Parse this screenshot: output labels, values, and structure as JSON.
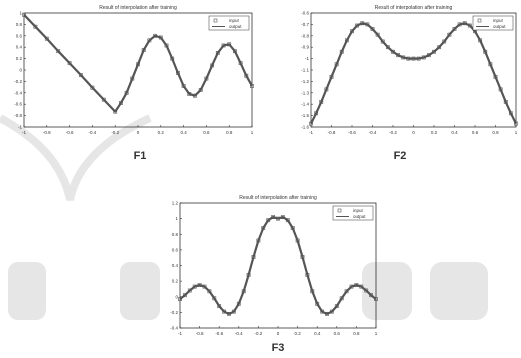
{
  "colors": {
    "series": "#555555",
    "watermark": "#e6e6e6",
    "axis": "#333333"
  },
  "chart_data": [
    {
      "type": "line",
      "caption": "F1",
      "title": "Result of interpolation after training",
      "xlim": [
        -1,
        1
      ],
      "ylim": [
        -1,
        1
      ],
      "xticks": [
        -1,
        -0.8,
        -0.6,
        -0.4,
        -0.2,
        0,
        0.2,
        0.4,
        0.6,
        0.8,
        1
      ],
      "yticks": [
        -1,
        -0.8,
        -0.6,
        -0.4,
        -0.2,
        0,
        0.2,
        0.4,
        0.6,
        0.8,
        1
      ],
      "xtick_labels": [
        "-1",
        "-0.8",
        "-0.6",
        "-0.4",
        "-0.2",
        "0",
        "0.2",
        "0.4",
        "0.6",
        "0.8",
        "1"
      ],
      "ytick_labels": [
        "-1",
        "-0.8",
        "-0.6",
        "-0.4",
        "-0.2",
        "0",
        "0.2",
        "0.4",
        "0.6",
        "0.8",
        "1"
      ],
      "legend": {
        "position": "top-right",
        "entries": [
          "input",
          "output"
        ]
      },
      "x": [
        -1,
        -0.9,
        -0.8,
        -0.7,
        -0.6,
        -0.5,
        -0.4,
        -0.3,
        -0.2,
        -0.15,
        -0.1,
        -0.05,
        0,
        0.05,
        0.1,
        0.15,
        0.2,
        0.25,
        0.3,
        0.35,
        0.4,
        0.45,
        0.5,
        0.55,
        0.6,
        0.65,
        0.7,
        0.75,
        0.8,
        0.85,
        0.9,
        0.95,
        1
      ],
      "series": [
        {
          "name": "input",
          "marker": "square",
          "values": [
            0.97,
            0.76,
            0.55,
            0.33,
            0.12,
            -0.09,
            -0.31,
            -0.52,
            -0.73,
            -0.58,
            -0.4,
            -0.15,
            0.1,
            0.35,
            0.52,
            0.6,
            0.57,
            0.43,
            0.2,
            -0.05,
            -0.28,
            -0.42,
            -0.45,
            -0.35,
            -0.15,
            0.08,
            0.3,
            0.43,
            0.45,
            0.33,
            0.12,
            -0.1,
            -0.28
          ]
        },
        {
          "name": "output",
          "marker": "line",
          "values": [
            0.97,
            0.76,
            0.55,
            0.33,
            0.12,
            -0.09,
            -0.31,
            -0.52,
            -0.73,
            -0.58,
            -0.4,
            -0.15,
            0.1,
            0.35,
            0.52,
            0.6,
            0.57,
            0.43,
            0.2,
            -0.05,
            -0.28,
            -0.42,
            -0.45,
            -0.35,
            -0.15,
            0.08,
            0.3,
            0.43,
            0.45,
            0.33,
            0.12,
            -0.1,
            -0.28
          ]
        }
      ]
    },
    {
      "type": "line",
      "caption": "F2",
      "title": "Result of interpolation after training",
      "xlim": [
        -1,
        1
      ],
      "ylim": [
        -1.6,
        -0.6
      ],
      "xticks": [
        -1,
        -0.8,
        -0.6,
        -0.4,
        -0.2,
        0,
        0.2,
        0.4,
        0.6,
        0.8,
        1
      ],
      "yticks": [
        -1.6,
        -1.5,
        -1.4,
        -1.3,
        -1.2,
        -1.1,
        -1,
        -0.9,
        -0.8,
        -0.7,
        -0.6
      ],
      "xtick_labels": [
        "-1",
        "-0.8",
        "-0.6",
        "-0.4",
        "-0.2",
        "0",
        "0.2",
        "0.4",
        "0.6",
        "0.8",
        "1"
      ],
      "ytick_labels": [
        "-1.6",
        "-1.5",
        "-1.4",
        "-1.3",
        "-1.2",
        "-1.1",
        "-1",
        "-0.9",
        "-0.8",
        "-0.7",
        "-0.6"
      ],
      "legend": {
        "position": "top-right",
        "entries": [
          "input",
          "output"
        ]
      },
      "x": [
        -1,
        -0.95,
        -0.9,
        -0.85,
        -0.8,
        -0.75,
        -0.7,
        -0.65,
        -0.6,
        -0.55,
        -0.5,
        -0.45,
        -0.4,
        -0.35,
        -0.3,
        -0.25,
        -0.2,
        -0.15,
        -0.1,
        -0.05,
        0,
        0.05,
        0.1,
        0.15,
        0.2,
        0.25,
        0.3,
        0.35,
        0.4,
        0.45,
        0.5,
        0.55,
        0.6,
        0.65,
        0.7,
        0.75,
        0.8,
        0.85,
        0.9,
        0.95,
        1
      ],
      "series": [
        {
          "name": "input",
          "marker": "square",
          "values": [
            -1.57,
            -1.48,
            -1.38,
            -1.27,
            -1.16,
            -1.05,
            -0.94,
            -0.84,
            -0.76,
            -0.71,
            -0.69,
            -0.7,
            -0.74,
            -0.79,
            -0.85,
            -0.9,
            -0.94,
            -0.97,
            -0.99,
            -1,
            -1,
            -1,
            -0.99,
            -0.97,
            -0.94,
            -0.9,
            -0.85,
            -0.79,
            -0.74,
            -0.7,
            -0.69,
            -0.71,
            -0.76,
            -0.84,
            -0.94,
            -1.05,
            -1.16,
            -1.27,
            -1.38,
            -1.48,
            -1.57
          ]
        },
        {
          "name": "output",
          "marker": "line",
          "values": [
            -1.57,
            -1.48,
            -1.38,
            -1.27,
            -1.16,
            -1.05,
            -0.94,
            -0.84,
            -0.76,
            -0.71,
            -0.69,
            -0.7,
            -0.74,
            -0.79,
            -0.85,
            -0.9,
            -0.94,
            -0.97,
            -0.99,
            -1,
            -1,
            -1,
            -0.99,
            -0.97,
            -0.94,
            -0.9,
            -0.85,
            -0.79,
            -0.74,
            -0.7,
            -0.69,
            -0.71,
            -0.76,
            -0.84,
            -0.94,
            -1.05,
            -1.16,
            -1.27,
            -1.38,
            -1.48,
            -1.57
          ]
        }
      ]
    },
    {
      "type": "line",
      "caption": "F3",
      "title": "Result of interpolation after training",
      "xlim": [
        -1,
        1
      ],
      "ylim": [
        -0.4,
        1.2
      ],
      "xticks": [
        -1,
        -0.8,
        -0.6,
        -0.4,
        -0.2,
        0,
        0.2,
        0.4,
        0.6,
        0.8,
        1
      ],
      "yticks": [
        -0.4,
        -0.2,
        0,
        0.2,
        0.4,
        0.6,
        0.8,
        1,
        1.2
      ],
      "xtick_labels": [
        "-1",
        "-0.8",
        "-0.6",
        "-0.4",
        "-0.2",
        "0",
        "0.2",
        "0.4",
        "0.6",
        "0.8",
        "1"
      ],
      "ytick_labels": [
        "-0.4",
        "-0.2",
        "0",
        "0.2",
        "0.4",
        "0.6",
        "0.8",
        "1",
        "1.2"
      ],
      "legend": {
        "position": "top-right",
        "entries": [
          "input",
          "output"
        ]
      },
      "x": [
        -1,
        -0.95,
        -0.9,
        -0.85,
        -0.8,
        -0.75,
        -0.7,
        -0.65,
        -0.6,
        -0.55,
        -0.5,
        -0.45,
        -0.4,
        -0.35,
        -0.3,
        -0.25,
        -0.2,
        -0.15,
        -0.1,
        -0.05,
        0,
        0.05,
        0.1,
        0.15,
        0.2,
        0.25,
        0.3,
        0.35,
        0.4,
        0.45,
        0.5,
        0.55,
        0.6,
        0.65,
        0.7,
        0.75,
        0.8,
        0.85,
        0.9,
        0.95,
        1
      ],
      "series": [
        {
          "name": "input",
          "marker": "square",
          "values": [
            -0.03,
            0.02,
            0.08,
            0.13,
            0.15,
            0.13,
            0.07,
            -0.02,
            -0.12,
            -0.19,
            -0.22,
            -0.19,
            -0.09,
            0.07,
            0.28,
            0.51,
            0.72,
            0.88,
            0.98,
            1.02,
            1.0,
            1.02,
            0.98,
            0.88,
            0.72,
            0.51,
            0.28,
            0.07,
            -0.09,
            -0.19,
            -0.22,
            -0.19,
            -0.12,
            -0.02,
            0.07,
            0.13,
            0.15,
            0.13,
            0.08,
            0.02,
            -0.03
          ]
        },
        {
          "name": "output",
          "marker": "line",
          "values": [
            -0.03,
            0.02,
            0.08,
            0.13,
            0.15,
            0.13,
            0.07,
            -0.02,
            -0.12,
            -0.19,
            -0.22,
            -0.19,
            -0.09,
            0.07,
            0.28,
            0.51,
            0.72,
            0.88,
            0.98,
            1.02,
            1.0,
            1.02,
            0.98,
            0.88,
            0.72,
            0.51,
            0.28,
            0.07,
            -0.09,
            -0.19,
            -0.22,
            -0.19,
            -0.12,
            -0.02,
            0.07,
            0.13,
            0.15,
            0.13,
            0.08,
            0.02,
            -0.03
          ]
        }
      ]
    }
  ]
}
